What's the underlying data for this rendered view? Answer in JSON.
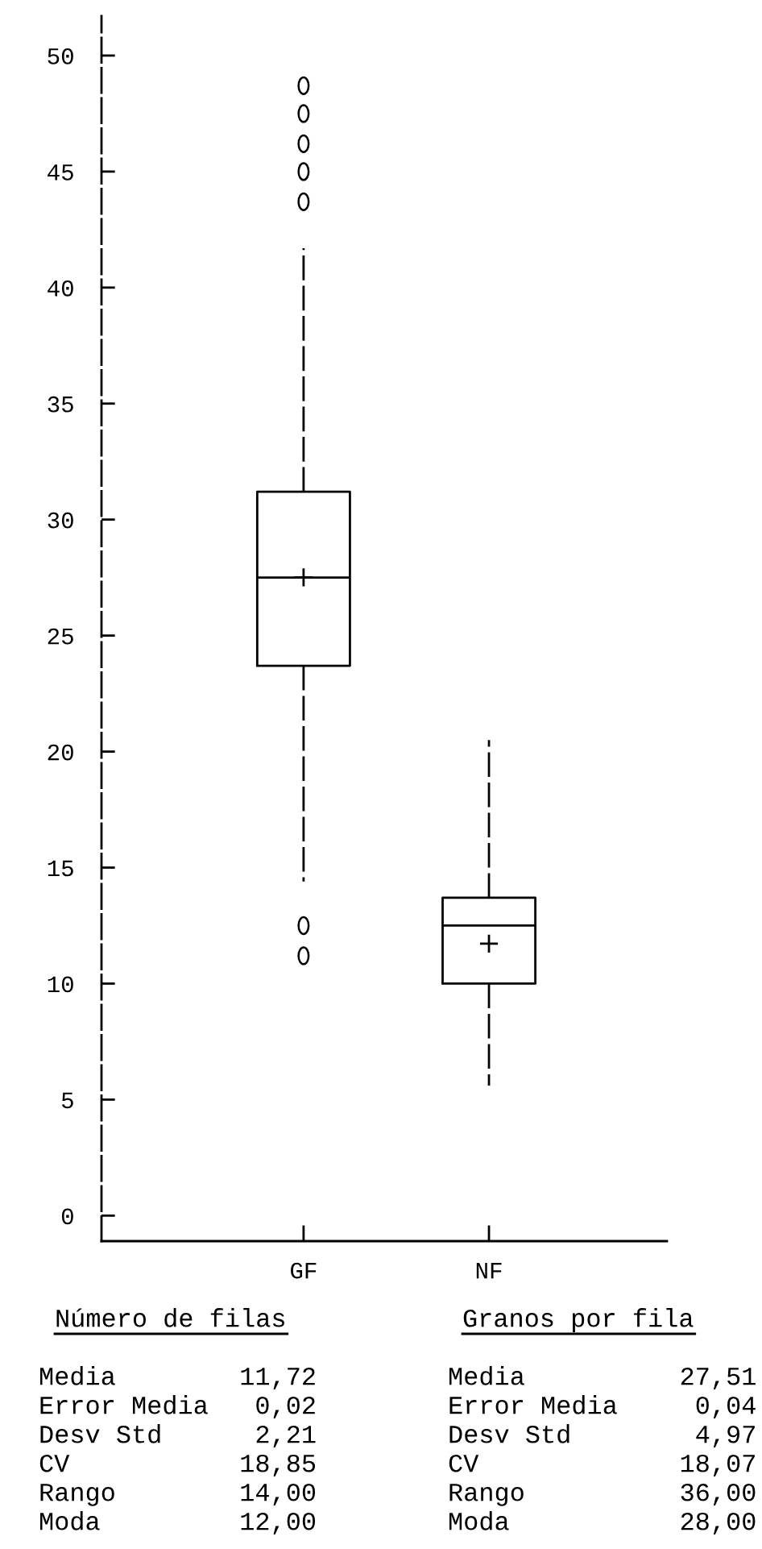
{
  "chart_data": {
    "type": "box",
    "categories": [
      "GF",
      "NF"
    ],
    "boxes": [
      {
        "low": 14.4,
        "q1": 23.7,
        "median": 27.5,
        "q3": 31.2,
        "high": 41.7,
        "mean": 27.51,
        "outliers": [
          48.7,
          47.5,
          46.2,
          45.0,
          43.7,
          12.5,
          11.2
        ]
      },
      {
        "low": 5.6,
        "q1": 10.0,
        "median": 12.5,
        "q3": 13.7,
        "high": 20.5,
        "mean": 11.72
      }
    ],
    "ylim": [
      -1.1,
      51.7
    ],
    "yticks": [
      0,
      5,
      10,
      15,
      20,
      25,
      30,
      35,
      40,
      45,
      50
    ],
    "line_style": "dashed",
    "annotations": [
      "Número de filas",
      "Media        11,72\nError Media   0,02\nDesv Std      2,21\nCV           18,85\nRango        14,00\nModa         12,00",
      "Granos por fila",
      "Media          27,51\nError Media     0,04\nDesv Std        4,97\nCV             18,07\nRango          36,00\nModa           28,00"
    ]
  }
}
